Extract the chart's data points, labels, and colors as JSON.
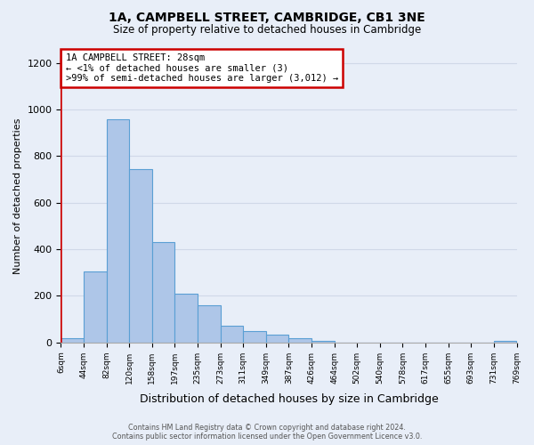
{
  "title": "1A, CAMPBELL STREET, CAMBRIDGE, CB1 3NE",
  "subtitle": "Size of property relative to detached houses in Cambridge",
  "xlabel": "Distribution of detached houses by size in Cambridge",
  "ylabel": "Number of detached properties",
  "footer_line1": "Contains HM Land Registry data © Crown copyright and database right 2024.",
  "footer_line2": "Contains public sector information licensed under the Open Government Licence v3.0.",
  "bin_labels": [
    "6sqm",
    "44sqm",
    "82sqm",
    "120sqm",
    "158sqm",
    "197sqm",
    "235sqm",
    "273sqm",
    "311sqm",
    "349sqm",
    "387sqm",
    "426sqm",
    "464sqm",
    "502sqm",
    "540sqm",
    "578sqm",
    "617sqm",
    "655sqm",
    "693sqm",
    "731sqm",
    "769sqm"
  ],
  "bar_heights": [
    20,
    305,
    960,
    745,
    430,
    210,
    160,
    70,
    47,
    33,
    18,
    8,
    0,
    0,
    0,
    0,
    0,
    0,
    0,
    8
  ],
  "bar_color": "#aec6e8",
  "bar_edge_color": "#5a9fd4",
  "annotation_line1": "1A CAMPBELL STREET: 28sqm",
  "annotation_line2": "← <1% of detached houses are smaller (3)",
  "annotation_line3": ">99% of semi-detached houses are larger (3,012) →",
  "annotation_box_color": "#ffffff",
  "annotation_box_edge": "#cc0000",
  "property_line_color": "#cc0000",
  "ylim": [
    0,
    1260
  ],
  "yticks": [
    0,
    200,
    400,
    600,
    800,
    1000,
    1200
  ],
  "grid_color": "#d0d8e8",
  "background_color": "#e8eef8",
  "plot_bg_color": "#e8eef8"
}
